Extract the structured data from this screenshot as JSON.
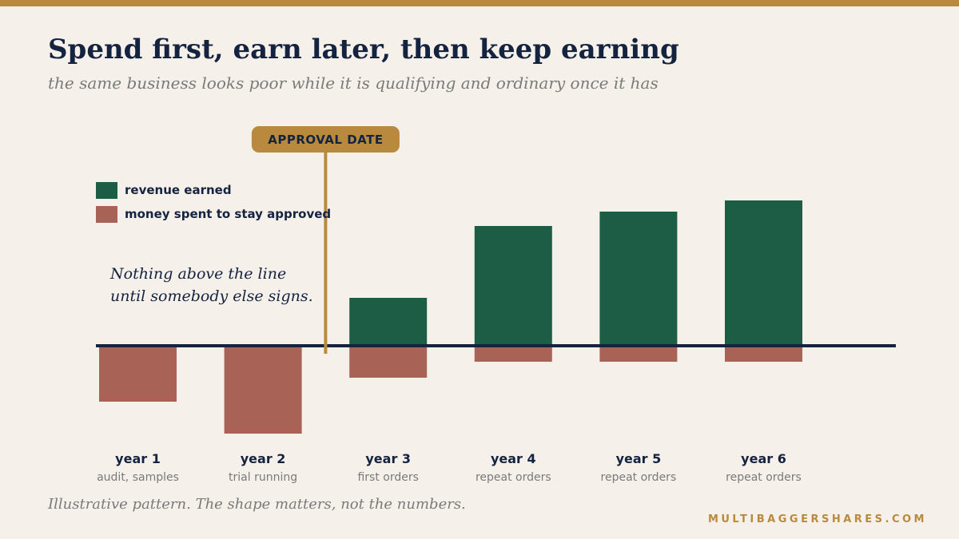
{
  "page": {
    "title": "Spend first, earn later, then keep earning",
    "subtitle": "the same business looks poor while it is qualifying and ordinary once it has",
    "footnote": "Illustrative pattern. The shape matters, not the numbers.",
    "brand": "MULTIBAGGERSHARES.COM"
  },
  "colors": {
    "accent": "#b98a3e",
    "earned": "#1d5c45",
    "spent": "#a86256",
    "ink": "#14233f",
    "muted": "#7a7a7a",
    "background": "#f5f0ea"
  },
  "chart_data": {
    "type": "bar",
    "categories": [
      "year 1",
      "year 2",
      "year 3",
      "year 4",
      "year 5",
      "year 6"
    ],
    "sublabels": [
      "audit, samples",
      "trial running",
      "first orders",
      "repeat orders",
      "repeat orders",
      "repeat orders"
    ],
    "series": [
      {
        "name": "revenue earned",
        "values": [
          0,
          0,
          60,
          150,
          168,
          182
        ]
      },
      {
        "name": "money spent to stay approved",
        "values": [
          -70,
          -110,
          -40,
          -20,
          -20,
          -20
        ]
      }
    ],
    "stacked": true,
    "ylim": [
      -140,
      200
    ],
    "xlabel": "",
    "ylabel": "",
    "grid": false,
    "legend": "top-left",
    "annotations": [
      {
        "type": "vline",
        "label": "APPROVAL DATE",
        "between": [
          "year 2",
          "year 3"
        ]
      },
      {
        "type": "note",
        "lines": [
          "Nothing above the line",
          "until somebody else signs."
        ]
      }
    ]
  }
}
